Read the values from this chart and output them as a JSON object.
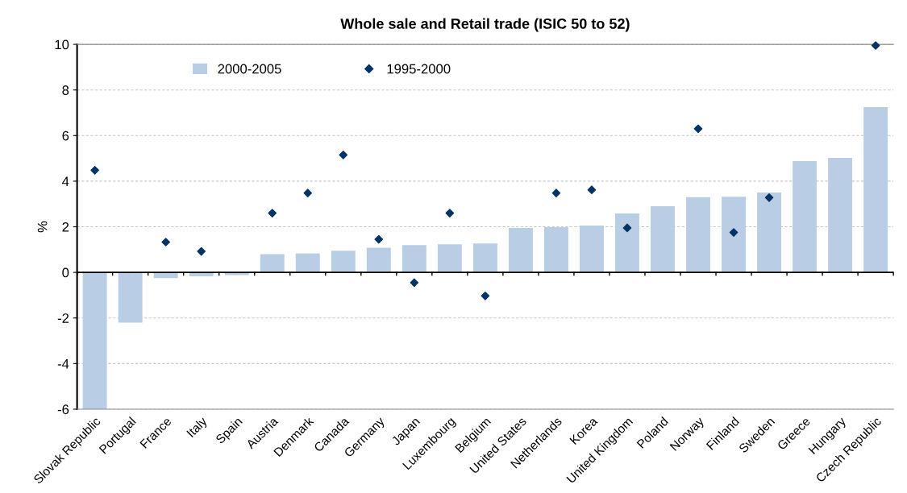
{
  "chart_data": {
    "type": "bar",
    "title": "Whole sale and Retail trade (ISIC 50 to 52)",
    "ylabel": "%",
    "categories": [
      "Slovak Republic",
      "Portugal",
      "France",
      "Italy",
      "Spain",
      "Austria",
      "Denmark",
      "Canada",
      "Germany",
      "Japan",
      "Luxembourg",
      "Belgium",
      "United States",
      "Netherlands",
      "Korea",
      "United Kingdom",
      "Poland",
      "Norway",
      "Finland",
      "Sweden",
      "Greece",
      "Hungary",
      "Czech Republic"
    ],
    "series": [
      {
        "name": "2000-2005",
        "color": "#b9cde4",
        "values": [
          -6,
          -2.2,
          -0.25,
          -0.17,
          -0.12,
          0.8,
          0.83,
          0.95,
          1.08,
          1.2,
          1.23,
          1.27,
          1.95,
          1.98,
          2.05,
          2.58,
          2.9,
          3.3,
          3.32,
          3.5,
          4.88,
          5.02,
          7.25
        ]
      },
      {
        "name": "1995-2000",
        "type": "scatter",
        "color": "#003366",
        "marker": "diamond",
        "values": [
          4.48,
          null,
          1.33,
          0.92,
          null,
          2.6,
          3.48,
          5.15,
          1.45,
          -0.45,
          2.6,
          -1.03,
          null,
          3.48,
          3.62,
          1.95,
          null,
          6.3,
          1.75,
          3.28,
          null,
          null,
          9.95
        ]
      }
    ],
    "ylim": [
      -6,
      10
    ],
    "yticks": [
      -6,
      -4,
      -2,
      0,
      2,
      4,
      6,
      8,
      10
    ],
    "grid": "y",
    "legend": "top"
  }
}
